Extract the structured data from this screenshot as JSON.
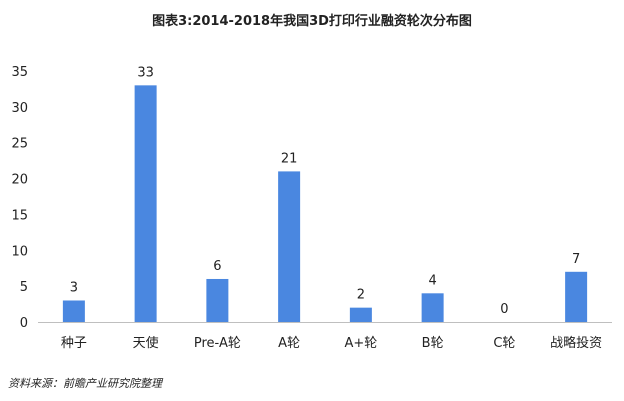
{
  "chart_data": {
    "type": "bar",
    "title": "图表3:2014-2018年我国3D打印行业融资轮次分布图",
    "categories": [
      "种子",
      "天使",
      "Pre-A轮",
      "A轮",
      "A+轮",
      "B轮",
      "C轮",
      "战略投资"
    ],
    "values": [
      3,
      33,
      6,
      21,
      2,
      4,
      0,
      7
    ],
    "xlabel": "",
    "ylabel": "",
    "ylim": [
      0,
      35
    ],
    "yticks": [
      0,
      5,
      10,
      15,
      20,
      25,
      30,
      35
    ],
    "grid": false,
    "legend": "none",
    "bar_color": "#4a87e0",
    "axis_color": "#bfbfbf",
    "text_color": "#222222"
  },
  "source": "资料来源：前瞻产业研究院整理"
}
